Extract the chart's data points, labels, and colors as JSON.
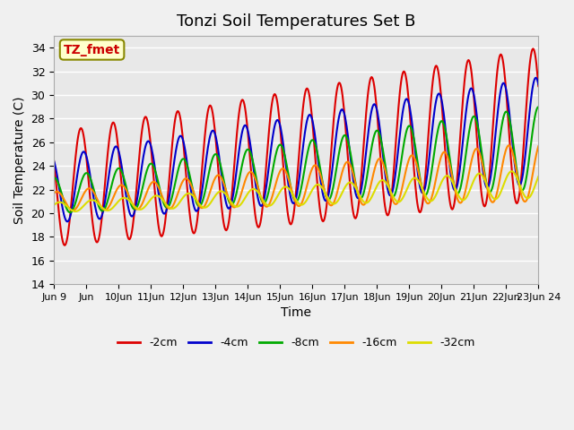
{
  "title": "Tonzi Soil Temperatures Set B",
  "xlabel": "Time",
  "ylabel": "Soil Temperature (C)",
  "ylim": [
    14,
    35
  ],
  "annotation": "TZ_fmet",
  "series_colors": [
    "#dd0000",
    "#0000cc",
    "#00aa00",
    "#ff8800",
    "#dddd00"
  ],
  "series_labels": [
    "-2cm",
    "-4cm",
    "-8cm",
    "-16cm",
    "-32cm"
  ],
  "yticks": [
    14,
    16,
    18,
    20,
    22,
    24,
    26,
    28,
    30,
    32,
    34
  ],
  "xtick_labels": [
    "Jun 9",
    "Jun",
    "10Jun",
    "11Jun",
    "12Jun",
    "13Jun",
    "14Jun",
    "15Jun",
    "16Jun",
    "17Jun",
    "18Jun",
    "19Jun",
    "20Jun",
    "21Jun",
    "22Jun",
    "23Jun",
    "24"
  ],
  "linewidth": 1.5,
  "n_days": 15
}
